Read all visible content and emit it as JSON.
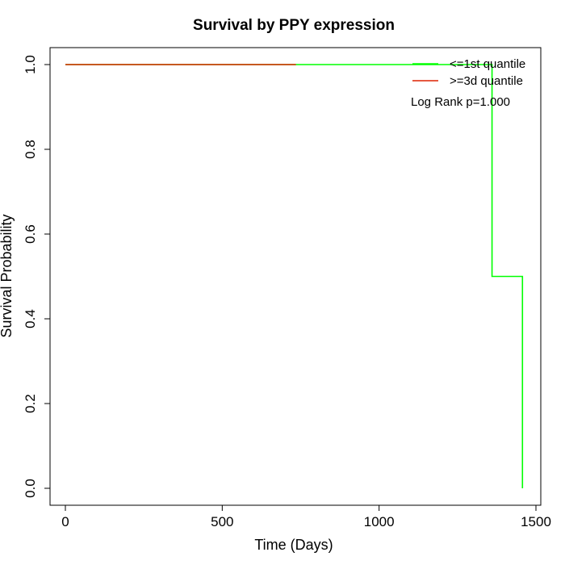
{
  "chart_data": {
    "type": "line",
    "title": "Survival by PPY expression",
    "xlabel": "Time (Days)",
    "ylabel": "Survival Probability",
    "xlim": [
      0,
      1500
    ],
    "ylim": [
      0,
      1
    ],
    "x_ticks": [
      0,
      500,
      1000,
      1500
    ],
    "y_ticks": [
      0.0,
      0.2,
      0.4,
      0.6,
      0.8,
      1.0
    ],
    "x_tick_labels": [
      "0",
      "500",
      "1000",
      "1500"
    ],
    "y_tick_labels": [
      "0.0",
      "0.2",
      "0.4",
      "0.6",
      "0.8",
      "1.0"
    ],
    "grid": false,
    "legend_position": "top-right",
    "series": [
      {
        "name": "<=1st quantile",
        "color": "#00ff00",
        "step": true,
        "x": [
          0,
          1360,
          1360,
          1457,
          1457
        ],
        "y": [
          1.0,
          1.0,
          0.5,
          0.5,
          0.0
        ]
      },
      {
        "name": ">=3d quantile",
        "color": "#dd2200",
        "step": true,
        "x": [
          0,
          735
        ],
        "y": [
          1.0,
          1.0
        ]
      }
    ],
    "annotations": [
      {
        "text": "Log Rank p=1.000"
      }
    ]
  }
}
